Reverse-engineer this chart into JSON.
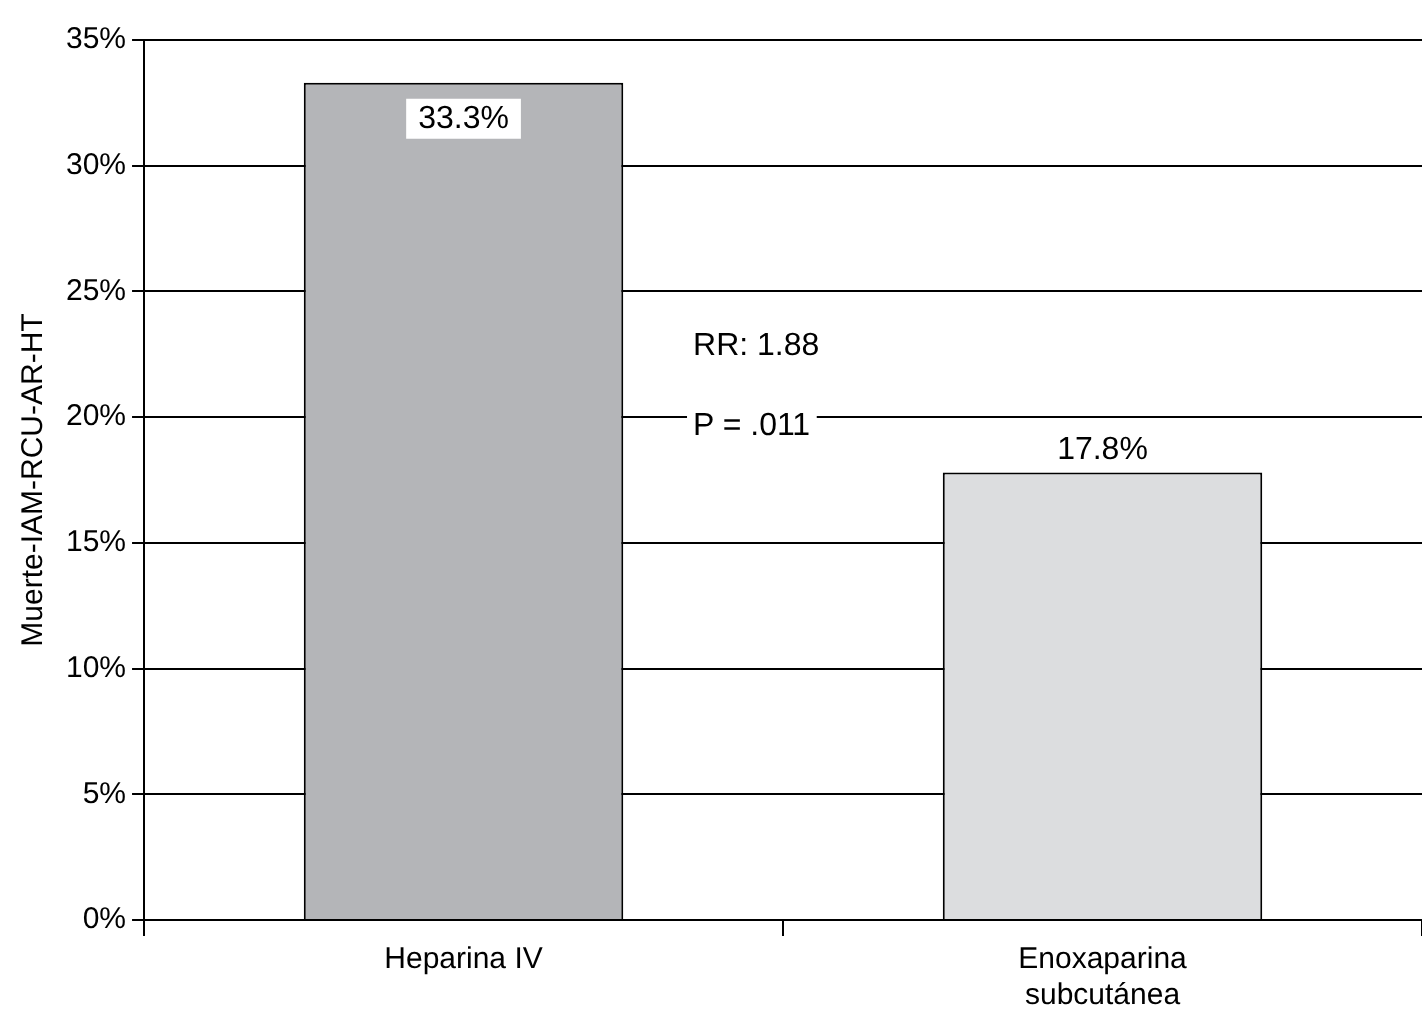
{
  "chart_data": {
    "type": "bar",
    "ylabel": "Muerte-IAM-RCU-AR-HT",
    "categories": [
      "Heparina IV",
      "Enoxaparina subcutánea"
    ],
    "values": [
      33.3,
      17.8
    ],
    "colors": [
      "#b4b5b8",
      "#dcdddf"
    ],
    "value_labels": [
      "33.3%",
      "17.8%"
    ],
    "ylim": [
      0,
      35
    ],
    "yticks": [
      {
        "value": 0,
        "label": "0%"
      },
      {
        "value": 5,
        "label": "5%"
      },
      {
        "value": 10,
        "label": "10%"
      },
      {
        "value": 15,
        "label": "15%"
      },
      {
        "value": 20,
        "label": "20%"
      },
      {
        "value": 25,
        "label": "25%"
      },
      {
        "value": 30,
        "label": "30%"
      },
      {
        "value": 35,
        "label": "35%"
      }
    ],
    "grid": "y",
    "legend": false,
    "annotations": [
      "RR: 1.88",
      "P = .011"
    ]
  }
}
